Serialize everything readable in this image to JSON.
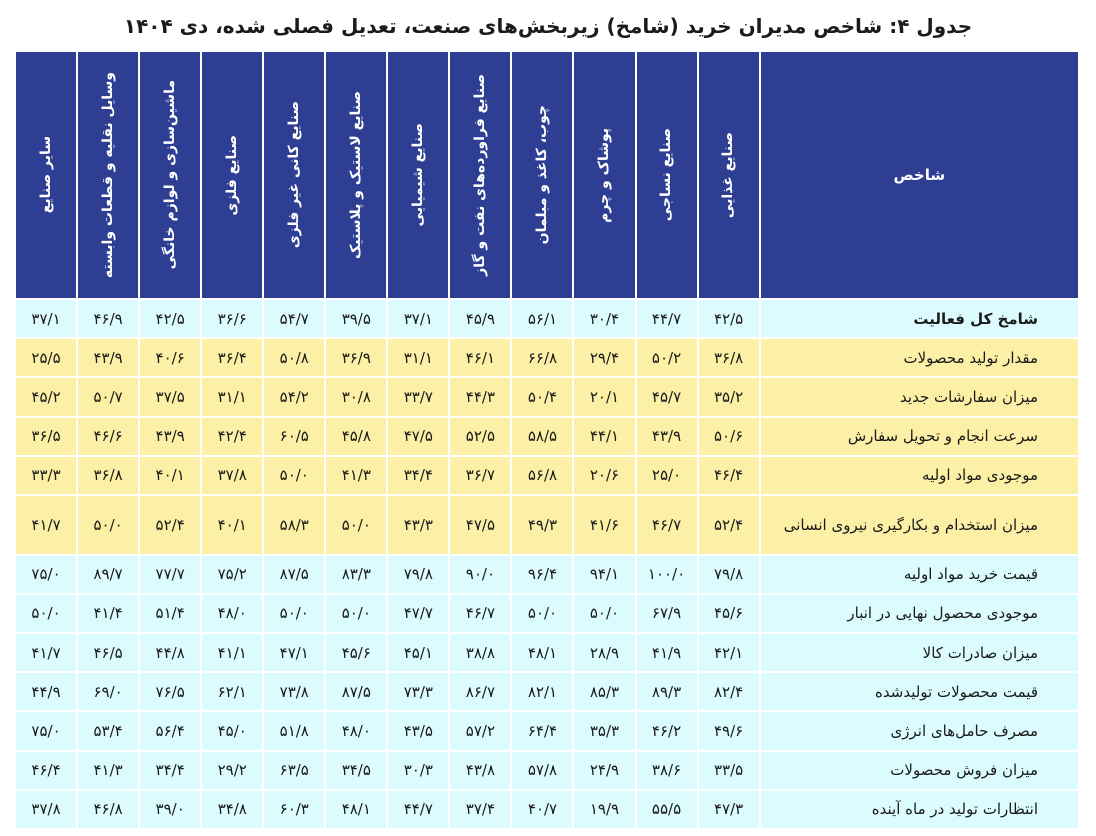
{
  "title": "جدول ۴: شاخص مدیران خرید (شامخ) زیربخش‌های صنعت، تعدیل فصلی شده، دی ۱۴۰۴",
  "header": {
    "index_label": "شاخص",
    "sectors": [
      "صنایع غذایی",
      "صنایع نساجی",
      "پوشاک و چرم",
      "چوب، کاغذ و مبلمان",
      "صنایع فراورده‌های نفت و گاز",
      "صنایع شیمیایی",
      "صنایع لاستیک و پلاستیک",
      "صنایع کانی غیر فلزی",
      "صنایع فلزی",
      "ماشین‌سازی و لوازم خانگی",
      "وسایل نقلیه و قطعات وابسته",
      "سایر صنایع"
    ]
  },
  "rows": [
    {
      "label": "شامخ کل فعالیت",
      "values": [
        "۴۲/۵",
        "۴۴/۷",
        "۳۰/۴",
        "۵۶/۱",
        "۴۵/۹",
        "۳۷/۱",
        "۳۹/۵",
        "۵۴/۷",
        "۳۶/۶",
        "۴۲/۵",
        "۴۶/۹",
        "۳۷/۱"
      ]
    },
    {
      "label": "مقدار تولید محصولات",
      "values": [
        "۳۶/۸",
        "۵۰/۲",
        "۲۹/۴",
        "۶۶/۸",
        "۴۶/۱",
        "۳۱/۱",
        "۳۶/۹",
        "۵۰/۸",
        "۳۶/۴",
        "۴۰/۶",
        "۴۳/۹",
        "۲۵/۵"
      ]
    },
    {
      "label": "میزان سفارشات جدید",
      "values": [
        "۳۵/۲",
        "۴۵/۷",
        "۲۰/۱",
        "۵۰/۴",
        "۴۴/۳",
        "۳۳/۷",
        "۳۰/۸",
        "۵۴/۲",
        "۳۱/۱",
        "۳۷/۵",
        "۵۰/۷",
        "۴۵/۲"
      ]
    },
    {
      "label": "سرعت انجام و تحویل سفارش",
      "values": [
        "۵۰/۶",
        "۴۳/۹",
        "۴۴/۱",
        "۵۸/۵",
        "۵۲/۵",
        "۴۷/۵",
        "۴۵/۸",
        "۶۰/۵",
        "۴۲/۴",
        "۴۳/۹",
        "۴۶/۶",
        "۳۶/۵"
      ]
    },
    {
      "label": "موجودی مواد اولیه",
      "values": [
        "۴۶/۴",
        "۲۵/۰",
        "۲۰/۶",
        "۵۶/۸",
        "۳۶/۷",
        "۳۴/۴",
        "۴۱/۳",
        "۵۰/۰",
        "۳۷/۸",
        "۴۰/۱",
        "۳۶/۸",
        "۳۳/۳"
      ]
    },
    {
      "label": "میزان استخدام و بکارگیری نیروی انسانی",
      "values": [
        "۵۲/۴",
        "۴۶/۷",
        "۴۱/۶",
        "۴۹/۳",
        "۴۷/۵",
        "۴۳/۳",
        "۵۰/۰",
        "۵۸/۳",
        "۴۰/۱",
        "۵۲/۴",
        "۵۰/۰",
        "۴۱/۷"
      ]
    },
    {
      "label": "قیمت خرید مواد اولیه",
      "values": [
        "۷۹/۸",
        "۱۰۰/۰",
        "۹۴/۱",
        "۹۶/۴",
        "۹۰/۰",
        "۷۹/۸",
        "۸۳/۳",
        "۸۷/۵",
        "۷۵/۲",
        "۷۷/۷",
        "۸۹/۷",
        "۷۵/۰"
      ]
    },
    {
      "label": "موجودی محصول نهایی در انبار",
      "values": [
        "۴۵/۶",
        "۶۷/۹",
        "۵۰/۰",
        "۵۰/۰",
        "۴۶/۷",
        "۴۷/۷",
        "۵۰/۰",
        "۵۰/۰",
        "۴۸/۰",
        "۵۱/۴",
        "۴۱/۴",
        "۵۰/۰"
      ]
    },
    {
      "label": "میزان صادرات کالا",
      "values": [
        "۴۲/۱",
        "۴۱/۹",
        "۲۸/۹",
        "۴۸/۱",
        "۳۸/۸",
        "۴۵/۱",
        "۴۵/۶",
        "۴۷/۱",
        "۴۱/۱",
        "۴۴/۸",
        "۴۶/۵",
        "۴۱/۷"
      ]
    },
    {
      "label": "قیمت محصولات تولیدشده",
      "values": [
        "۸۲/۴",
        "۸۹/۳",
        "۸۵/۳",
        "۸۲/۱",
        "۸۶/۷",
        "۷۳/۳",
        "۸۷/۵",
        "۷۳/۸",
        "۶۲/۱",
        "۷۶/۵",
        "۶۹/۰",
        "۴۴/۹"
      ]
    },
    {
      "label": "مصرف حامل‌های انرژی",
      "values": [
        "۴۹/۶",
        "۴۶/۲",
        "۳۵/۳",
        "۶۴/۴",
        "۵۷/۲",
        "۴۳/۵",
        "۴۸/۰",
        "۵۱/۸",
        "۴۵/۰",
        "۵۶/۴",
        "۵۳/۴",
        "۷۵/۰"
      ]
    },
    {
      "label": "میزان فروش محصولات",
      "values": [
        "۳۳/۵",
        "۳۸/۶",
        "۲۴/۹",
        "۵۷/۸",
        "۴۳/۸",
        "۳۰/۳",
        "۳۴/۵",
        "۶۳/۵",
        "۲۹/۲",
        "۳۴/۴",
        "۴۱/۳",
        "۴۶/۴"
      ]
    },
    {
      "label": "انتظارات تولید در ماه آینده",
      "values": [
        "۴۷/۳",
        "۵۵/۵",
        "۱۹/۹",
        "۴۰/۷",
        "۳۷/۴",
        "۴۴/۷",
        "۴۸/۱",
        "۶۰/۳",
        "۳۴/۸",
        "۳۹/۰",
        "۴۶/۸",
        "۳۷/۸"
      ]
    }
  ]
}
